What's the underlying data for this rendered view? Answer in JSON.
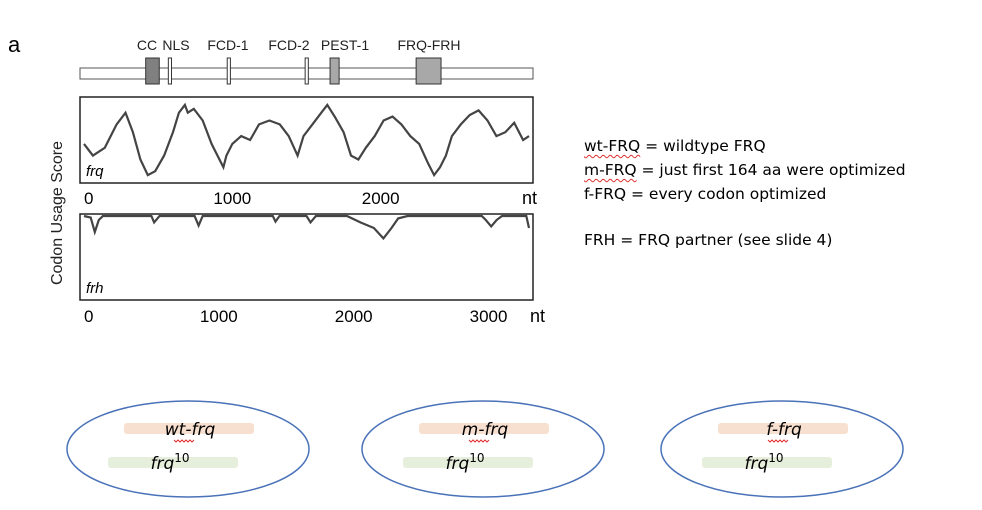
{
  "panel_label": "a",
  "y_axis_label": "Codon Usage Score",
  "domains": [
    {
      "label": "CC",
      "start": 0.145,
      "end": 0.175,
      "color": "#808080"
    },
    {
      "label": "NLS",
      "start": 0.195,
      "end": 0.202,
      "color": "#ffffff"
    },
    {
      "label": "FCD-1",
      "start": 0.325,
      "end": 0.332,
      "color": "#ffffff"
    },
    {
      "label": "FCD-2",
      "start": 0.497,
      "end": 0.504,
      "color": "#ffffff"
    },
    {
      "label": "PEST-1",
      "start": 0.552,
      "end": 0.572,
      "color": "#a8a8a8"
    },
    {
      "label": "FRQ-FRH",
      "start": 0.742,
      "end": 0.797,
      "color": "#a8a8a8"
    }
  ],
  "plots": {
    "frq": {
      "gene_label": "frq",
      "ticks": [
        "0",
        "1000",
        "2000"
      ],
      "tick_values": [
        0,
        1000,
        2000
      ],
      "axis_max": 3000,
      "unit": "nt",
      "profile": [
        [
          0,
          0.45
        ],
        [
          60,
          0.3
        ],
        [
          140,
          0.4
        ],
        [
          220,
          0.7
        ],
        [
          280,
          0.85
        ],
        [
          330,
          0.6
        ],
        [
          380,
          0.25
        ],
        [
          430,
          0.05
        ],
        [
          480,
          0.1
        ],
        [
          540,
          0.3
        ],
        [
          600,
          0.6
        ],
        [
          640,
          0.85
        ],
        [
          680,
          0.95
        ],
        [
          700,
          0.85
        ],
        [
          740,
          0.9
        ],
        [
          800,
          0.75
        ],
        [
          860,
          0.45
        ],
        [
          900,
          0.3
        ],
        [
          940,
          0.15
        ],
        [
          960,
          0.3
        ],
        [
          1000,
          0.45
        ],
        [
          1060,
          0.55
        ],
        [
          1120,
          0.5
        ],
        [
          1180,
          0.7
        ],
        [
          1250,
          0.75
        ],
        [
          1320,
          0.7
        ],
        [
          1380,
          0.55
        ],
        [
          1440,
          0.3
        ],
        [
          1480,
          0.55
        ],
        [
          1540,
          0.7
        ],
        [
          1600,
          0.85
        ],
        [
          1640,
          0.95
        ],
        [
          1690,
          0.8
        ],
        [
          1750,
          0.6
        ],
        [
          1800,
          0.3
        ],
        [
          1850,
          0.25
        ],
        [
          1900,
          0.4
        ],
        [
          1960,
          0.55
        ],
        [
          2020,
          0.75
        ],
        [
          2080,
          0.8
        ],
        [
          2140,
          0.7
        ],
        [
          2200,
          0.55
        ],
        [
          2260,
          0.45
        ],
        [
          2320,
          0.2
        ],
        [
          2360,
          0.05
        ],
        [
          2400,
          0.15
        ],
        [
          2440,
          0.3
        ],
        [
          2480,
          0.55
        ],
        [
          2540,
          0.7
        ],
        [
          2600,
          0.82
        ],
        [
          2660,
          0.88
        ],
        [
          2720,
          0.75
        ],
        [
          2780,
          0.55
        ],
        [
          2840,
          0.6
        ],
        [
          2900,
          0.72
        ],
        [
          2960,
          0.5
        ],
        [
          3000,
          0.55
        ]
      ]
    },
    "frh": {
      "gene_label": "frh",
      "ticks": [
        "0",
        "1000",
        "2000",
        "3000"
      ],
      "tick_values": [
        0,
        1000,
        2000,
        3000
      ],
      "axis_max": 3300,
      "unit": "nt",
      "profile": [
        [
          0,
          1.0
        ],
        [
          50,
          0.98
        ],
        [
          80,
          0.8
        ],
        [
          110,
          0.95
        ],
        [
          140,
          1.0
        ],
        [
          500,
          1.0
        ],
        [
          520,
          0.92
        ],
        [
          560,
          1.0
        ],
        [
          820,
          1.0
        ],
        [
          850,
          0.88
        ],
        [
          880,
          1.0
        ],
        [
          1400,
          1.0
        ],
        [
          1420,
          0.93
        ],
        [
          1450,
          1.0
        ],
        [
          1650,
          1.0
        ],
        [
          1680,
          0.92
        ],
        [
          1720,
          1.0
        ],
        [
          1950,
          1.0
        ],
        [
          2050,
          0.92
        ],
        [
          2150,
          0.85
        ],
        [
          2220,
          0.72
        ],
        [
          2280,
          0.85
        ],
        [
          2330,
          0.97
        ],
        [
          2400,
          1.0
        ],
        [
          2950,
          1.0
        ],
        [
          2980,
          0.95
        ],
        [
          3020,
          0.87
        ],
        [
          3060,
          0.95
        ],
        [
          3100,
          1.0
        ],
        [
          3280,
          1.0
        ],
        [
          3300,
          0.85
        ]
      ]
    }
  },
  "notes": [
    {
      "prefix": "wt-FRQ",
      "rest": " = wildtype FRQ",
      "squiggle": "wt"
    },
    {
      "prefix": "m-FRQ",
      "rest": " = just first 164 aa were optimized",
      "squiggle": "m"
    },
    {
      "prefix": "f-FRQ",
      "rest": " = every codon optimized",
      "squiggle": ""
    },
    {
      "prefix": "FRH",
      "rest": " =  FRQ partner (see slide 4)",
      "squiggle": ""
    }
  ],
  "cells": [
    {
      "construct": "wt-frq",
      "background_gene": "frq",
      "superscript": "10"
    },
    {
      "construct": "m-frq",
      "background_gene": "frq",
      "superscript": "10"
    },
    {
      "construct": "f-frq",
      "background_gene": "frq",
      "superscript": "10"
    }
  ],
  "colors": {
    "trace": "#444444",
    "construct_bar": "#f7e0d0",
    "background_bar": "#e6eedc",
    "cell_outline": "#4a72b8"
  }
}
